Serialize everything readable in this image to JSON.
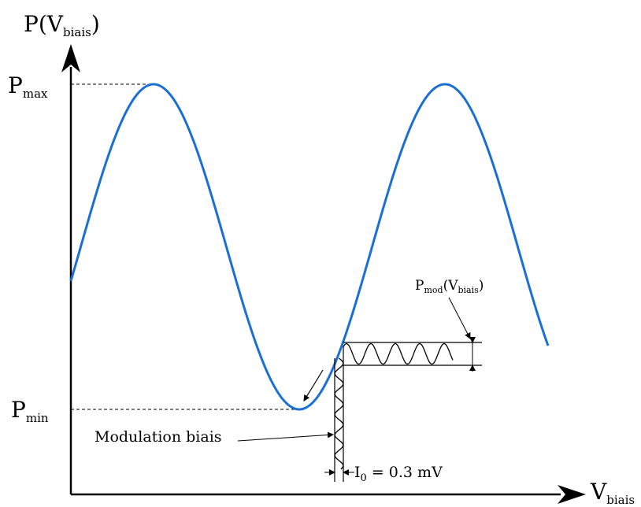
{
  "y_axis_label": {
    "main": "P(V",
    "sub": "biais",
    "tail": ")"
  },
  "x_axis_label": {
    "main": "V",
    "sub": "biais"
  },
  "pmax_label": {
    "main": "P",
    "sub": "max"
  },
  "pmin_label": {
    "main": "P",
    "sub": "min"
  },
  "pmod_label": {
    "main": "P",
    "sub1": "mod",
    "mid": "(V",
    "sub2": "biais",
    "tail": ")"
  },
  "modulation_label": "Modulation biais",
  "i0_label": {
    "main": "I",
    "sub": "0",
    "tail": " = 0.3 mV"
  },
  "colors": {
    "curve": "#1a6fd6",
    "ink": "#000000"
  }
}
